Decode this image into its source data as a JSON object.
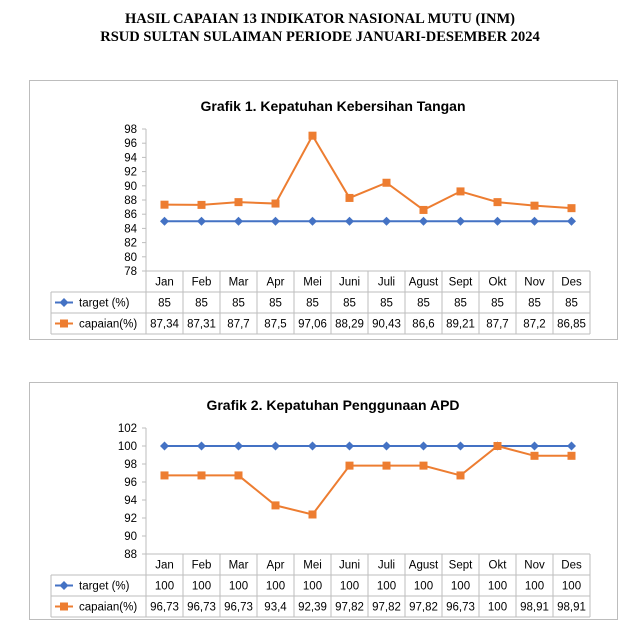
{
  "header": {
    "line1": "HASIL CAPAIAN 13 INDIKATOR NASIONAL MUTU (INM)",
    "line2": "RSUD SULTAN SULAIMAN PERIODE JANUARI-DESEMBER 2024"
  },
  "colors": {
    "target": "#4472C4",
    "capaian": "#ED7D31",
    "border": "#bdbdbd",
    "grid": "#d9d9d9"
  },
  "chart_data": [
    {
      "type": "line",
      "title": "Grafik 1. Kepatuhan Kebersihan Tangan",
      "categories": [
        "Jan",
        "Feb",
        "Mar",
        "Apr",
        "Mei",
        "Juni",
        "Juli",
        "Agust",
        "Sept",
        "Okt",
        "Nov",
        "Des"
      ],
      "ylim": [
        78,
        98
      ],
      "yticks": [
        78,
        80,
        82,
        84,
        86,
        88,
        90,
        92,
        94,
        96,
        98
      ],
      "grid": false,
      "legend_placement": "data-table",
      "series": [
        {
          "name": "target (%)",
          "marker": "diamond",
          "color": "#4472C4",
          "values": [
            85,
            85,
            85,
            85,
            85,
            85,
            85,
            85,
            85,
            85,
            85,
            85
          ],
          "labels": [
            "85",
            "85",
            "85",
            "85",
            "85",
            "85",
            "85",
            "85",
            "85",
            "85",
            "85",
            "85"
          ]
        },
        {
          "name": "capaian(%)",
          "marker": "square",
          "color": "#ED7D31",
          "values": [
            87.34,
            87.31,
            87.7,
            87.5,
            97.06,
            88.29,
            90.43,
            86.6,
            89.21,
            87.7,
            87.2,
            86.85
          ],
          "labels": [
            "87,34",
            "87,31",
            "87,7",
            "87,5",
            "97,06",
            "88,29",
            "90,43",
            "86,6",
            "89,21",
            "87,7",
            "87,2",
            "86,85"
          ]
        }
      ]
    },
    {
      "type": "line",
      "title": "Grafik 2. Kepatuhan Penggunaan APD",
      "categories": [
        "Jan",
        "Feb",
        "Mar",
        "Apr",
        "Mei",
        "Juni",
        "Juli",
        "Agust",
        "Sept",
        "Okt",
        "Nov",
        "Des"
      ],
      "ylim": [
        88,
        102
      ],
      "yticks": [
        88,
        90,
        92,
        94,
        96,
        98,
        100,
        102
      ],
      "grid": false,
      "legend_placement": "data-table",
      "series": [
        {
          "name": "target (%)",
          "marker": "diamond",
          "color": "#4472C4",
          "values": [
            100,
            100,
            100,
            100,
            100,
            100,
            100,
            100,
            100,
            100,
            100,
            100
          ],
          "labels": [
            "100",
            "100",
            "100",
            "100",
            "100",
            "100",
            "100",
            "100",
            "100",
            "100",
            "100",
            "100"
          ]
        },
        {
          "name": "capaian(%)",
          "marker": "square",
          "color": "#ED7D31",
          "values": [
            96.73,
            96.73,
            96.73,
            93.4,
            92.39,
            97.82,
            97.82,
            97.82,
            96.73,
            100,
            98.91,
            98.91
          ],
          "labels": [
            "96,73",
            "96,73",
            "96,73",
            "93,4",
            "92,39",
            "97,82",
            "97,82",
            "97,82",
            "96,73",
            "100",
            "98,91",
            "98,91"
          ]
        }
      ]
    }
  ]
}
